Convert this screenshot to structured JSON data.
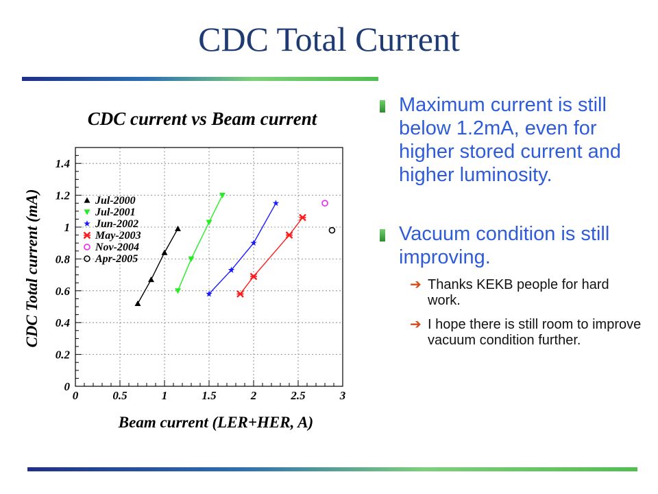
{
  "slide": {
    "title": "CDC Total Current",
    "bullets": [
      {
        "text": "Maximum current is still below 1.2mA, even for higher stored current and higher luminosity."
      },
      {
        "text": "Vacuum condition is still improving.",
        "subs": [
          {
            "text": " Thanks KEKB people for hard work."
          },
          {
            "text": " I hope there is still room to improve vacuum condition further."
          }
        ]
      }
    ]
  },
  "chart_data": {
    "type": "scatter",
    "title": "CDC current vs Beam current",
    "xlabel": "Beam current (LER+HER, A)",
    "ylabel": "CDC Total current (mA)",
    "xlim": [
      0,
      3
    ],
    "ylim": [
      0,
      1.5
    ],
    "xticks": [
      "0",
      "0.5",
      "1",
      "1.5",
      "2",
      "2.5",
      "3"
    ],
    "yticks": [
      "0",
      "0.2",
      "0.4",
      "0.6",
      "0.8",
      "1",
      "1.2",
      "1.4"
    ],
    "grid": true,
    "legend_position": "top-left",
    "series": [
      {
        "name": "Jul-2000",
        "color": "#000000",
        "marker": "triangle-up",
        "line": true,
        "points": [
          [
            0.7,
            0.52
          ],
          [
            0.85,
            0.67
          ],
          [
            1.0,
            0.84
          ],
          [
            1.15,
            0.99
          ]
        ]
      },
      {
        "name": "Jul-2001",
        "color": "#22ee22",
        "marker": "triangle-down",
        "line": true,
        "points": [
          [
            1.15,
            0.6
          ],
          [
            1.3,
            0.8
          ],
          [
            1.5,
            1.03
          ],
          [
            1.65,
            1.2
          ]
        ]
      },
      {
        "name": "Jun-2002",
        "color": "#1a1aff",
        "marker": "star",
        "line": true,
        "points": [
          [
            1.5,
            0.58
          ],
          [
            1.75,
            0.73
          ],
          [
            2.0,
            0.9
          ],
          [
            2.25,
            1.15
          ]
        ]
      },
      {
        "name": "May-2003",
        "color": "#ff1a1a",
        "marker": "x-star",
        "line": true,
        "points": [
          [
            1.85,
            0.58
          ],
          [
            2.0,
            0.69
          ],
          [
            2.4,
            0.95
          ],
          [
            2.55,
            1.06
          ]
        ]
      },
      {
        "name": "Nov-2004",
        "color": "#ee22ee",
        "marker": "circle",
        "line": false,
        "points": [
          [
            2.8,
            1.15
          ]
        ]
      },
      {
        "name": "Apr-2005",
        "color": "#000000",
        "marker": "circle",
        "line": false,
        "points": [
          [
            2.88,
            0.98
          ]
        ]
      }
    ]
  }
}
